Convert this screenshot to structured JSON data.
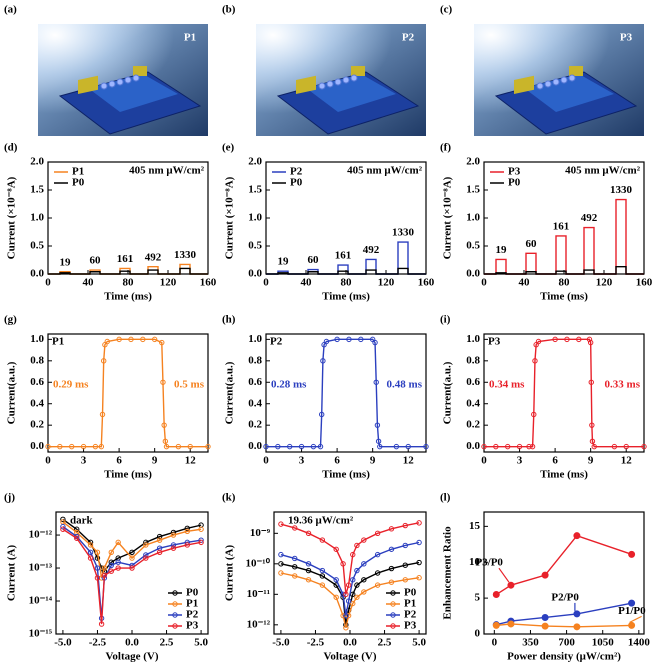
{
  "images": [
    {
      "label": "(a)",
      "tag": "P1"
    },
    {
      "label": "(b)",
      "tag": "P2"
    },
    {
      "label": "(c)",
      "tag": "P3"
    }
  ],
  "chart_data": [
    {
      "type": "line",
      "panel_label": "(d)",
      "xlabel": "Time (ms)",
      "ylabel": "Current (×10⁻⁸A)",
      "condition": "405 nm  μW/cm²",
      "xlim": [
        0,
        160
      ],
      "xticks": [
        0,
        40,
        80,
        120,
        160
      ],
      "ylim": [
        0,
        2.0
      ],
      "yticks": [
        {
          "value": 0,
          "label": "0.0"
        },
        0.5,
        {
          "value": 1,
          "label": "1.0"
        },
        1.5,
        {
          "value": 2,
          "label": "2.0"
        }
      ],
      "legend": "upper left",
      "pulse_labels": [
        19,
        60,
        161,
        492,
        1330
      ],
      "x": [
        0,
        12,
        12,
        22,
        22,
        42,
        42,
        52,
        52,
        72,
        72,
        82,
        82,
        100,
        100,
        110,
        110,
        132,
        132,
        142,
        142,
        160
      ],
      "series": [
        {
          "name": "P1",
          "color": "#f58220",
          "values": [
            0,
            0,
            0.04,
            0.04,
            0,
            0,
            0.07,
            0.07,
            0,
            0,
            0.1,
            0.1,
            0,
            0,
            0.13,
            0.13,
            0,
            0,
            0.17,
            0.17,
            0,
            0
          ]
        },
        {
          "name": "P0",
          "color": "#000000",
          "values": [
            0,
            0,
            0.02,
            0.02,
            0,
            0,
            0.04,
            0.04,
            0,
            0,
            0.05,
            0.05,
            0,
            0,
            0.07,
            0.07,
            0,
            0,
            0.1,
            0.1,
            0,
            0
          ]
        }
      ]
    },
    {
      "type": "line",
      "panel_label": "(e)",
      "xlabel": "Time (ms)",
      "ylabel": "Current (×10⁻⁸A)",
      "condition": "405 nm  μW/cm²",
      "xlim": [
        0,
        160
      ],
      "xticks": [
        0,
        40,
        80,
        120,
        160
      ],
      "ylim": [
        0,
        2.0
      ],
      "yticks": [
        {
          "value": 0,
          "label": "0.0"
        },
        0.5,
        {
          "value": 1,
          "label": "1.0"
        },
        1.5,
        {
          "value": 2,
          "label": "2.0"
        }
      ],
      "legend": "upper left",
      "pulse_labels": [
        19,
        60,
        161,
        492,
        1330
      ],
      "x": [
        0,
        12,
        12,
        22,
        22,
        42,
        42,
        52,
        52,
        72,
        72,
        82,
        82,
        100,
        100,
        110,
        110,
        132,
        132,
        142,
        142,
        160
      ],
      "series": [
        {
          "name": "P2",
          "color": "#2b3fbf",
          "values": [
            0,
            0,
            0.05,
            0.05,
            0,
            0,
            0.08,
            0.08,
            0,
            0,
            0.16,
            0.16,
            0,
            0,
            0.26,
            0.26,
            0,
            0,
            0.57,
            0.57,
            0,
            0
          ]
        },
        {
          "name": "P0",
          "color": "#000000",
          "values": [
            0,
            0,
            0.02,
            0.02,
            0,
            0,
            0.04,
            0.04,
            0,
            0,
            0.05,
            0.05,
            0,
            0,
            0.07,
            0.07,
            0,
            0,
            0.1,
            0.1,
            0,
            0
          ]
        }
      ]
    },
    {
      "type": "line",
      "panel_label": "(f)",
      "xlabel": "Time (ms)",
      "ylabel": "Current (×10⁻⁸A)",
      "condition": "405 nm  μW/cm²",
      "xlim": [
        0,
        160
      ],
      "xticks": [
        0,
        40,
        80,
        120,
        160
      ],
      "ylim": [
        0,
        2.0
      ],
      "yticks": [
        {
          "value": 0,
          "label": "0.0"
        },
        0.5,
        {
          "value": 1,
          "label": "1.0"
        },
        1.5,
        {
          "value": 2,
          "label": "2.0"
        }
      ],
      "legend": "upper left",
      "pulse_labels": [
        19,
        60,
        161,
        492,
        1330
      ],
      "x": [
        0,
        12,
        12,
        22,
        22,
        42,
        42,
        52,
        52,
        72,
        72,
        82,
        82,
        100,
        100,
        110,
        110,
        132,
        132,
        142,
        142,
        160
      ],
      "series": [
        {
          "name": "P3",
          "color": "#e8212a",
          "values": [
            0,
            0,
            0.26,
            0.26,
            0,
            0,
            0.37,
            0.37,
            0,
            0,
            0.68,
            0.68,
            0,
            0,
            0.83,
            0.83,
            0,
            0,
            1.33,
            1.33,
            0,
            0
          ]
        },
        {
          "name": "P0",
          "color": "#000000",
          "values": [
            0,
            0,
            0.02,
            0.02,
            0,
            0,
            0.04,
            0.04,
            0,
            0,
            0.05,
            0.05,
            0,
            0,
            0.07,
            0.07,
            0,
            0,
            0.13,
            0.13,
            0,
            0
          ]
        }
      ]
    },
    {
      "type": "line",
      "panel_label": "(g)",
      "xlabel": "Time (ms)",
      "ylabel": "Current(a.u.)",
      "sample": "P1",
      "rise_time": "0.29 ms",
      "fall_time": "0.5 ms",
      "markers": true,
      "xlim": [
        0,
        13.5
      ],
      "xticks": [
        0,
        3,
        6,
        9,
        12
      ],
      "ylim": [
        -0.05,
        1.05
      ],
      "yticks": [
        {
          "value": 0,
          "label": "0.0"
        },
        0.2,
        0.4,
        0.6,
        0.8,
        {
          "value": 1,
          "label": "1.0"
        }
      ],
      "x": [
        0,
        1,
        2,
        3,
        4,
        4.5,
        4.6,
        4.7,
        4.8,
        5,
        6,
        7,
        8,
        9,
        9.6,
        9.7,
        9.8,
        9.9,
        10,
        11,
        12,
        13.5
      ],
      "series": [
        {
          "name": "P1",
          "color": "#f58220",
          "values": [
            0,
            0,
            0,
            0,
            0,
            0,
            0.3,
            0.8,
            0.95,
            0.98,
            1,
            1,
            1,
            1,
            0.97,
            0.6,
            0.2,
            0.05,
            0,
            0,
            0,
            0
          ]
        }
      ]
    },
    {
      "type": "line",
      "panel_label": "(h)",
      "xlabel": "Time (ms)",
      "ylabel": "Current(a.u.)",
      "sample": "P2",
      "rise_time": "0.28 ms",
      "fall_time": "0.48 ms",
      "markers": true,
      "xlim": [
        0,
        13.5
      ],
      "xticks": [
        0,
        3,
        6,
        9,
        12
      ],
      "ylim": [
        -0.05,
        1.05
      ],
      "yticks": [
        {
          "value": 0,
          "label": "0.0"
        },
        0.2,
        0.4,
        0.6,
        0.8,
        {
          "value": 1,
          "label": "1.0"
        }
      ],
      "x": [
        0,
        1,
        2,
        3,
        4,
        4.6,
        4.7,
        4.8,
        4.9,
        5.1,
        6,
        7,
        8,
        9,
        9.2,
        9.3,
        9.4,
        9.5,
        9.6,
        11,
        12,
        13.5
      ],
      "series": [
        {
          "name": "P2",
          "color": "#2b3fbf",
          "values": [
            0,
            0,
            0,
            0,
            0,
            0,
            0.3,
            0.8,
            0.95,
            0.98,
            1,
            1,
            1,
            1,
            0.97,
            0.6,
            0.2,
            0.05,
            0,
            0,
            0,
            0
          ]
        }
      ]
    },
    {
      "type": "line",
      "panel_label": "(i)",
      "xlabel": "Time (ms)",
      "ylabel": "Current(a.u.)",
      "sample": "P3",
      "rise_time": "0.34 ms",
      "fall_time": "0.33 ms",
      "markers": true,
      "xlim": [
        0,
        13.5
      ],
      "xticks": [
        0,
        3,
        6,
        9,
        12
      ],
      "ylim": [
        -0.05,
        1.05
      ],
      "yticks": [
        {
          "value": 0,
          "label": "0.0"
        },
        0.2,
        0.4,
        0.6,
        0.8,
        {
          "value": 1,
          "label": "1.0"
        }
      ],
      "x": [
        0,
        1,
        2,
        3,
        3.8,
        4.1,
        4.2,
        4.3,
        4.4,
        4.6,
        6,
        7,
        8,
        8.9,
        9.0,
        9.05,
        9.1,
        9.15,
        9.3,
        11,
        12,
        13.5
      ],
      "series": [
        {
          "name": "P3",
          "color": "#e8212a",
          "values": [
            0,
            0,
            0,
            0,
            0,
            0,
            0.3,
            0.8,
            0.95,
            0.98,
            1,
            1,
            1,
            1,
            0.97,
            0.6,
            0.2,
            0.05,
            0,
            0,
            0,
            0
          ]
        }
      ]
    },
    {
      "type": "line",
      "panel_label": "(j)",
      "xlabel": "Voltage (V)",
      "ylabel": "Current (A)",
      "condition": "dark",
      "markers": true,
      "log_y": true,
      "legend": "lower right",
      "xlim": [
        -5.5,
        5.5
      ],
      "xticks": [
        {
          "value": -5,
          "label": "-5.0"
        },
        -2.5,
        {
          "value": 0,
          "label": "0.0"
        },
        2.5,
        {
          "value": 5,
          "label": "5.0"
        }
      ],
      "ylim": [
        1e-15,
        5e-12
      ],
      "yticks": [
        {
          "value": 1e-15,
          "label": "10⁻¹⁵"
        },
        {
          "value": 1e-14,
          "label": "10⁻¹⁴"
        },
        {
          "value": 1e-13,
          "label": "10⁻¹³"
        },
        {
          "value": 1e-12,
          "label": "10⁻¹²"
        }
      ],
      "x": [
        -5,
        -4,
        -3,
        -2.5,
        -2.2,
        -2,
        -1.5,
        -1,
        0,
        1,
        2,
        3,
        4,
        5
      ],
      "series": [
        {
          "name": "P0",
          "color": "#000000",
          "values": [
            3e-12,
            1.5e-12,
            6e-13,
            2e-13,
            1e-13,
            8e-14,
            1.5e-13,
            2e-13,
            3e-13,
            6e-13,
            9e-13,
            1.2e-12,
            1.6e-12,
            2e-12
          ]
        },
        {
          "name": "P1",
          "color": "#f58220",
          "values": [
            2.5e-12,
            1.2e-12,
            5e-13,
            3e-13,
            5e-14,
            1e-13,
            3e-13,
            6e-13,
            2e-13,
            5e-13,
            7e-13,
            1e-12,
            1.3e-12,
            1.5e-12
          ]
        },
        {
          "name": "P2",
          "color": "#2b3fbf",
          "values": [
            1.8e-12,
            9e-13,
            3e-13,
            1e-13,
            3e-15,
            5e-14,
            1.2e-13,
            1.5e-13,
            1.2e-13,
            2.5e-13,
            4e-13,
            5e-13,
            6e-13,
            7e-13
          ]
        },
        {
          "name": "P3",
          "color": "#e8212a",
          "values": [
            1.5e-12,
            8e-13,
            2e-13,
            5e-14,
            2e-15,
            6e-14,
            8e-14,
            1e-13,
            1e-13,
            2e-13,
            3e-13,
            4e-13,
            5e-13,
            6e-13
          ]
        }
      ]
    },
    {
      "type": "line",
      "panel_label": "(k)",
      "xlabel": "Voltage (V)",
      "ylabel": "Current (A)",
      "condition": "19.36 μW/cm²",
      "markers": true,
      "log_y": true,
      "legend": "lower right",
      "xlim": [
        -5.5,
        5.5
      ],
      "xticks": [
        {
          "value": -5,
          "label": "-5.0"
        },
        -2.5,
        {
          "value": 0,
          "label": "0.0"
        },
        2.5,
        {
          "value": 5,
          "label": "5.0"
        }
      ],
      "ylim": [
        5e-13,
        5e-09
      ],
      "yticks": [
        {
          "value": 1e-12,
          "label": "10⁻¹²"
        },
        {
          "value": 1e-11,
          "label": "10⁻¹¹"
        },
        {
          "value": 1e-10,
          "label": "10⁻¹⁰"
        },
        {
          "value": 1e-09,
          "label": "10⁻⁹"
        }
      ],
      "x": [
        -5,
        -4,
        -3,
        -2,
        -1,
        -0.5,
        -0.3,
        -0.1,
        0.2,
        0.5,
        1,
        2,
        3,
        4,
        5
      ],
      "series": [
        {
          "name": "P0",
          "color": "#000000",
          "values": [
            1e-10,
            8e-11,
            6e-11,
            4e-11,
            2e-11,
            8e-12,
            1e-12,
            3e-12,
            1e-11,
            2e-11,
            3e-11,
            5e-11,
            7e-11,
            9e-11,
            1.1e-10
          ]
        },
        {
          "name": "P1",
          "color": "#f58220",
          "values": [
            5e-11,
            4e-11,
            3e-11,
            2e-11,
            8e-12,
            2e-12,
            8e-13,
            2e-12,
            5e-12,
            8e-12,
            1.2e-11,
            2e-11,
            2.5e-11,
            3e-11,
            3.5e-11
          ]
        },
        {
          "name": "P2",
          "color": "#2b3fbf",
          "values": [
            2e-10,
            1.5e-10,
            1e-10,
            6e-11,
            3e-11,
            1e-11,
            2e-12,
            6e-12,
            3e-11,
            6e-11,
            1e-10,
            2e-10,
            3e-10,
            4e-10,
            5e-10
          ]
        },
        {
          "name": "P3",
          "color": "#e8212a",
          "values": [
            2e-09,
            1.5e-09,
            1e-09,
            6e-10,
            3e-10,
            1e-10,
            1e-11,
            2e-11,
            2e-10,
            4e-10,
            6e-10,
            1e-09,
            1.4e-09,
            1.8e-09,
            2.2e-09
          ]
        }
      ]
    },
    {
      "type": "line",
      "panel_label": "(l)",
      "xlabel": "Power density (μW/cm²)",
      "ylabel": "Enhancement Ratio",
      "markers": true,
      "filled": true,
      "xlim": [
        -100,
        1450
      ],
      "xticks": [
        0,
        350,
        700,
        1050,
        1400
      ],
      "ylim": [
        0,
        17
      ],
      "yticks": [
        0,
        5,
        10,
        15
      ],
      "x": [
        19,
        161,
        492,
        800,
        1330
      ],
      "series": [
        {
          "name": "P3/P0",
          "color": "#e8212a",
          "values": [
            5.5,
            6.8,
            8.2,
            13.7,
            11.1
          ]
        },
        {
          "name": "P2/P0",
          "color": "#2b3fbf",
          "values": [
            1.3,
            1.8,
            2.3,
            2.8,
            4.3
          ]
        },
        {
          "name": "P1/P0",
          "color": "#f58220",
          "values": [
            1.2,
            1.4,
            1.1,
            1.0,
            1.2
          ]
        }
      ]
    }
  ]
}
